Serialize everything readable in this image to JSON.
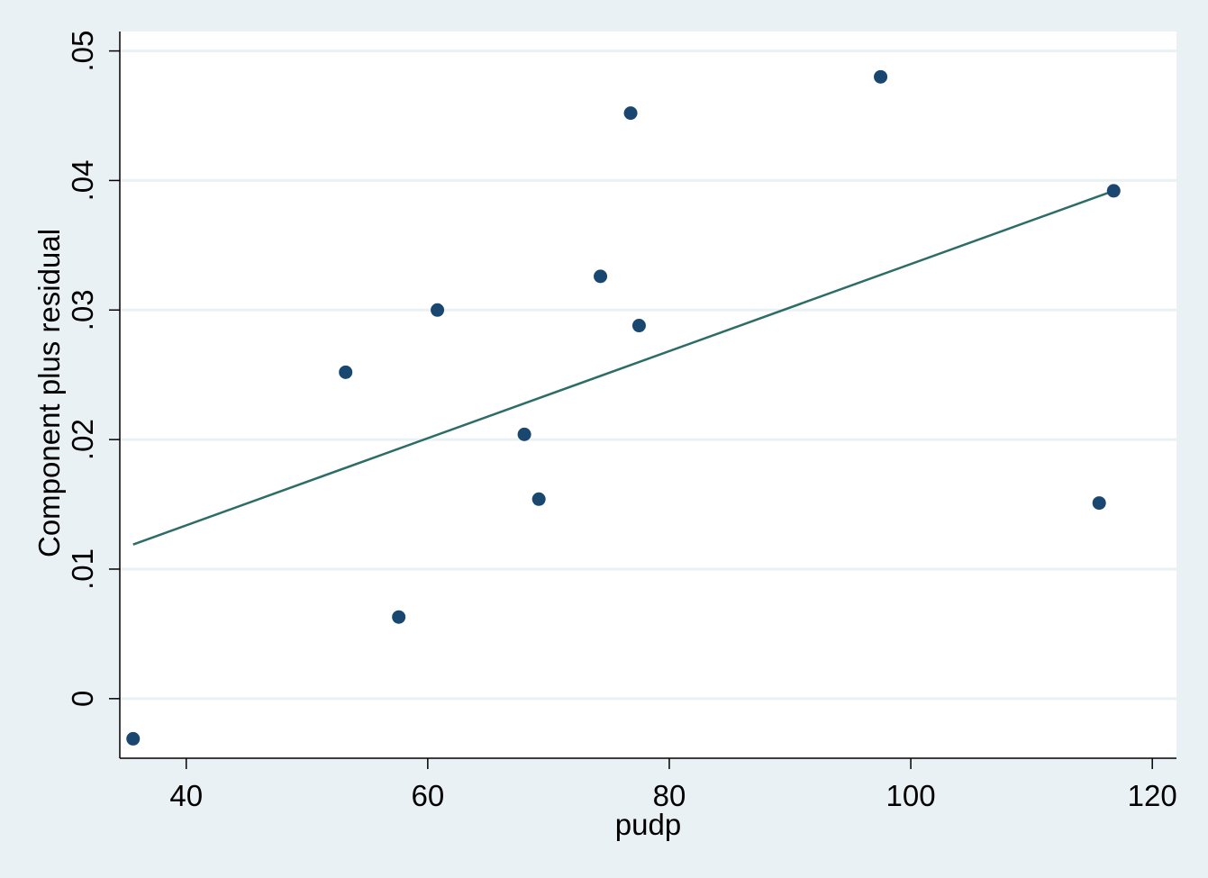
{
  "chart_data": {
    "type": "scatter",
    "title": "",
    "xlabel": "pudp",
    "ylabel": "Component plus residual",
    "xlim": [
      34.5,
      122
    ],
    "ylim": [
      -0.0046,
      0.0515
    ],
    "x_ticks": [
      40,
      60,
      80,
      100,
      120
    ],
    "x_tick_labels": [
      "40",
      "60",
      "80",
      "100",
      "120"
    ],
    "y_ticks": [
      0,
      0.01,
      0.02,
      0.03,
      0.04,
      0.05
    ],
    "y_tick_labels": [
      "0",
      ".01",
      ".02",
      ".03",
      ".04",
      ".05"
    ],
    "grid": "horizontal",
    "colors": {
      "background": "#eaf1f4",
      "plot_area": "#ffffff",
      "gridline": "#eaf1f4",
      "marker": "#1a476f",
      "fit_line": "#2d6d66"
    },
    "series": [
      {
        "type": "scatter",
        "points": [
          {
            "x": 35.6,
            "y": -0.0031
          },
          {
            "x": 53.2,
            "y": 0.0252
          },
          {
            "x": 57.6,
            "y": 0.0063
          },
          {
            "x": 60.8,
            "y": 0.03
          },
          {
            "x": 68.0,
            "y": 0.0204
          },
          {
            "x": 69.2,
            "y": 0.0154
          },
          {
            "x": 74.3,
            "y": 0.0326
          },
          {
            "x": 76.8,
            "y": 0.0452
          },
          {
            "x": 77.5,
            "y": 0.0288
          },
          {
            "x": 97.5,
            "y": 0.048
          },
          {
            "x": 115.6,
            "y": 0.0151
          },
          {
            "x": 116.8,
            "y": 0.0392
          }
        ]
      },
      {
        "type": "line",
        "points": [
          {
            "x": 35.6,
            "y": 0.0119
          },
          {
            "x": 116.8,
            "y": 0.0392
          }
        ]
      }
    ]
  }
}
